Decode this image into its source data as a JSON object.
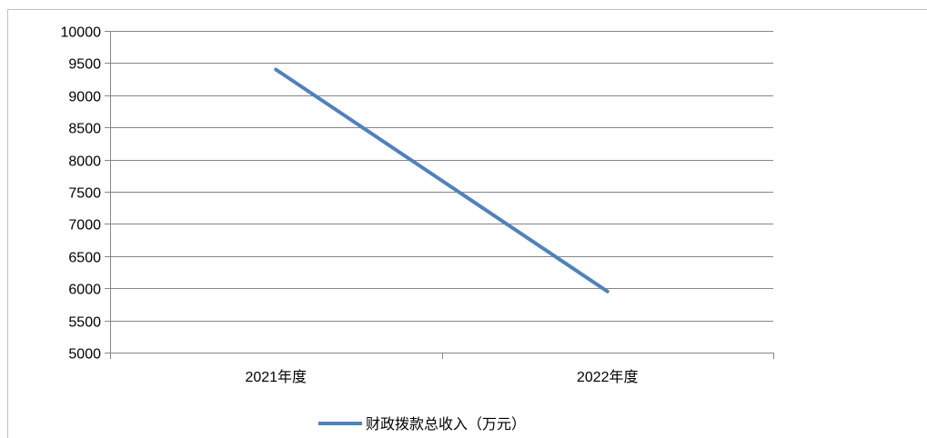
{
  "chart_data": {
    "type": "line",
    "categories": [
      "2021年度",
      "2022年度"
    ],
    "series": [
      {
        "name": "财政拨款总收入（万元）",
        "values": [
          9400,
          5950
        ],
        "color": "#4f81bd"
      }
    ],
    "title": "",
    "xlabel": "",
    "ylabel": "",
    "ylim": [
      5000,
      10000
    ],
    "ytick_step": 500,
    "grid": "horizontal",
    "legend_position": "bottom"
  }
}
